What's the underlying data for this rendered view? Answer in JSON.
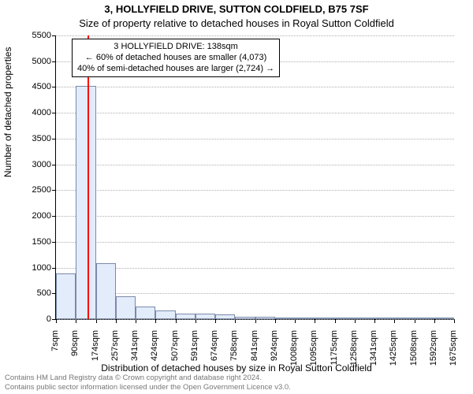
{
  "titles": {
    "main": "3, HOLLYFIELD DRIVE, SUTTON COLDFIELD, B75 7SF",
    "sub": "Size of property relative to detached houses in Royal Sutton Coldfield"
  },
  "chart": {
    "type": "histogram",
    "y_axis": {
      "label": "Number of detached properties",
      "min": 0,
      "max": 5500,
      "tick_step": 500,
      "ticks": [
        0,
        500,
        1000,
        1500,
        2000,
        2500,
        3000,
        3500,
        4000,
        4500,
        5000,
        5500
      ]
    },
    "x_axis": {
      "label": "Distribution of detached houses by size in Royal Sutton Coldfield",
      "ticks": [
        "7sqm",
        "90sqm",
        "174sqm",
        "257sqm",
        "341sqm",
        "424sqm",
        "507sqm",
        "591sqm",
        "674sqm",
        "758sqm",
        "841sqm",
        "924sqm",
        "1008sqm",
        "1095sqm",
        "1175sqm",
        "1258sqm",
        "1341sqm",
        "1425sqm",
        "1508sqm",
        "1592sqm",
        "1675sqm"
      ]
    },
    "bars": {
      "values": [
        880,
        4520,
        1080,
        440,
        250,
        170,
        100,
        100,
        90,
        50,
        40,
        30,
        25,
        20,
        18,
        14,
        10,
        10,
        8,
        6
      ],
      "fill_color": "#e3ecfb",
      "border_color": "#7a8aa8"
    },
    "marker": {
      "x_value_sqm": 138,
      "x_min_sqm": 7,
      "x_max_sqm": 1675,
      "color": "#ff0000"
    },
    "annotation": {
      "line1": "3 HOLLYFIELD DRIVE: 138sqm",
      "line2": "← 60% of detached houses are smaller (4,073)",
      "line3": "40% of semi-detached houses are larger (2,724) →",
      "border_color": "#000000",
      "bg_color": "#ffffff",
      "fontsize": 11
    },
    "grid_color": "#b0b0b0",
    "background_color": "#ffffff"
  },
  "footer": {
    "line1": "Contains HM Land Registry data © Crown copyright and database right 2024.",
    "line2": "Contains public sector information licensed under the Open Government Licence v3.0."
  }
}
